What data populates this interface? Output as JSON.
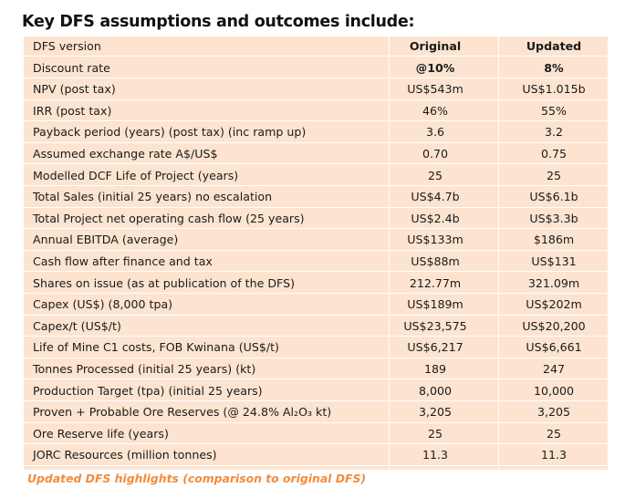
{
  "heading": "Key DFS assumptions and outcomes include:",
  "caption": "Updated DFS highlights (comparison to original DFS)",
  "header_row": {
    "label": "DFS version",
    "original": "Original",
    "updated": "Updated"
  },
  "rows": [
    {
      "label": "Discount rate",
      "original": "@10%",
      "updated": "8%",
      "bold": true
    },
    {
      "label": "NPV (post tax)",
      "original": "US$543m",
      "updated": "US$1.015b"
    },
    {
      "label": "IRR (post tax)",
      "original": "46%",
      "updated": "55%"
    },
    {
      "label": "Payback period (years) (post tax) (inc ramp up)",
      "original": "3.6",
      "updated": "3.2"
    },
    {
      "label": "Assumed exchange rate A$/US$",
      "original": "0.70",
      "updated": "0.75"
    },
    {
      "label": "Modelled DCF Life of Project (years)",
      "original": "25",
      "updated": "25"
    },
    {
      "label": "Total Sales (initial 25 years) no escalation",
      "original": "US$4.7b",
      "updated": "US$6.1b"
    },
    {
      "label": "Total Project net operating cash flow (25 years)",
      "original": "US$2.4b",
      "updated": "US$3.3b"
    },
    {
      "label": "Annual EBITDA (average)",
      "original": "US$133m",
      "updated": "$186m"
    },
    {
      "label": "Cash flow after finance and tax",
      "original": "US$88m",
      "updated": "US$131"
    },
    {
      "label": "Shares on issue (as at publication of the DFS)",
      "original": "212.77m",
      "updated": "321.09m"
    },
    {
      "label": "Capex (US$) (8,000 tpa)",
      "original": "US$189m",
      "updated": "US$202m"
    },
    {
      "label": "Capex/t (US$/t)",
      "original": "US$23,575",
      "updated": "US$20,200"
    },
    {
      "label": "Life of Mine C1 costs, FOB Kwinana (US$/t)",
      "original": "US$6,217",
      "updated": "US$6,661"
    },
    {
      "label": "Tonnes Processed (initial 25 years) (kt)",
      "original": "189",
      "updated": "247"
    },
    {
      "label": "Production Target (tpa) (initial 25 years)",
      "original": "8,000",
      "updated": "10,000"
    },
    {
      "label": "Proven + Probable Ore Reserves (@ 24.8% Al₂O₃ kt)",
      "original": "3,205",
      "updated": "3,205"
    },
    {
      "label": "Ore Reserve life (years)",
      "original": "25",
      "updated": "25"
    },
    {
      "label": "JORC Resources (million tonnes)",
      "original": "11.3",
      "updated": "11.3"
    }
  ]
}
